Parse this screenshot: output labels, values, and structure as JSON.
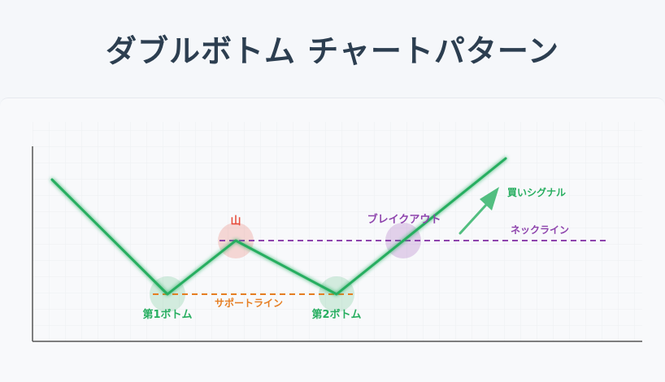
{
  "title": "ダブルボトム チャートパターン",
  "labels": {
    "peak": "山",
    "breakout": "ブレイクアウト",
    "buy_signal": "買いシグナル",
    "neckline": "ネックライン",
    "first_bottom": "第1ボトム",
    "support_line": "サポートライン",
    "second_bottom": "第2ボトム"
  },
  "colors": {
    "price": "#27ae60",
    "neckline": "#8e44ad",
    "support": "#e67e22",
    "peak": "#e74c3c",
    "bottom": "#27ae60",
    "breakout": "#9b59b6",
    "title": "#2c3e50"
  }
}
